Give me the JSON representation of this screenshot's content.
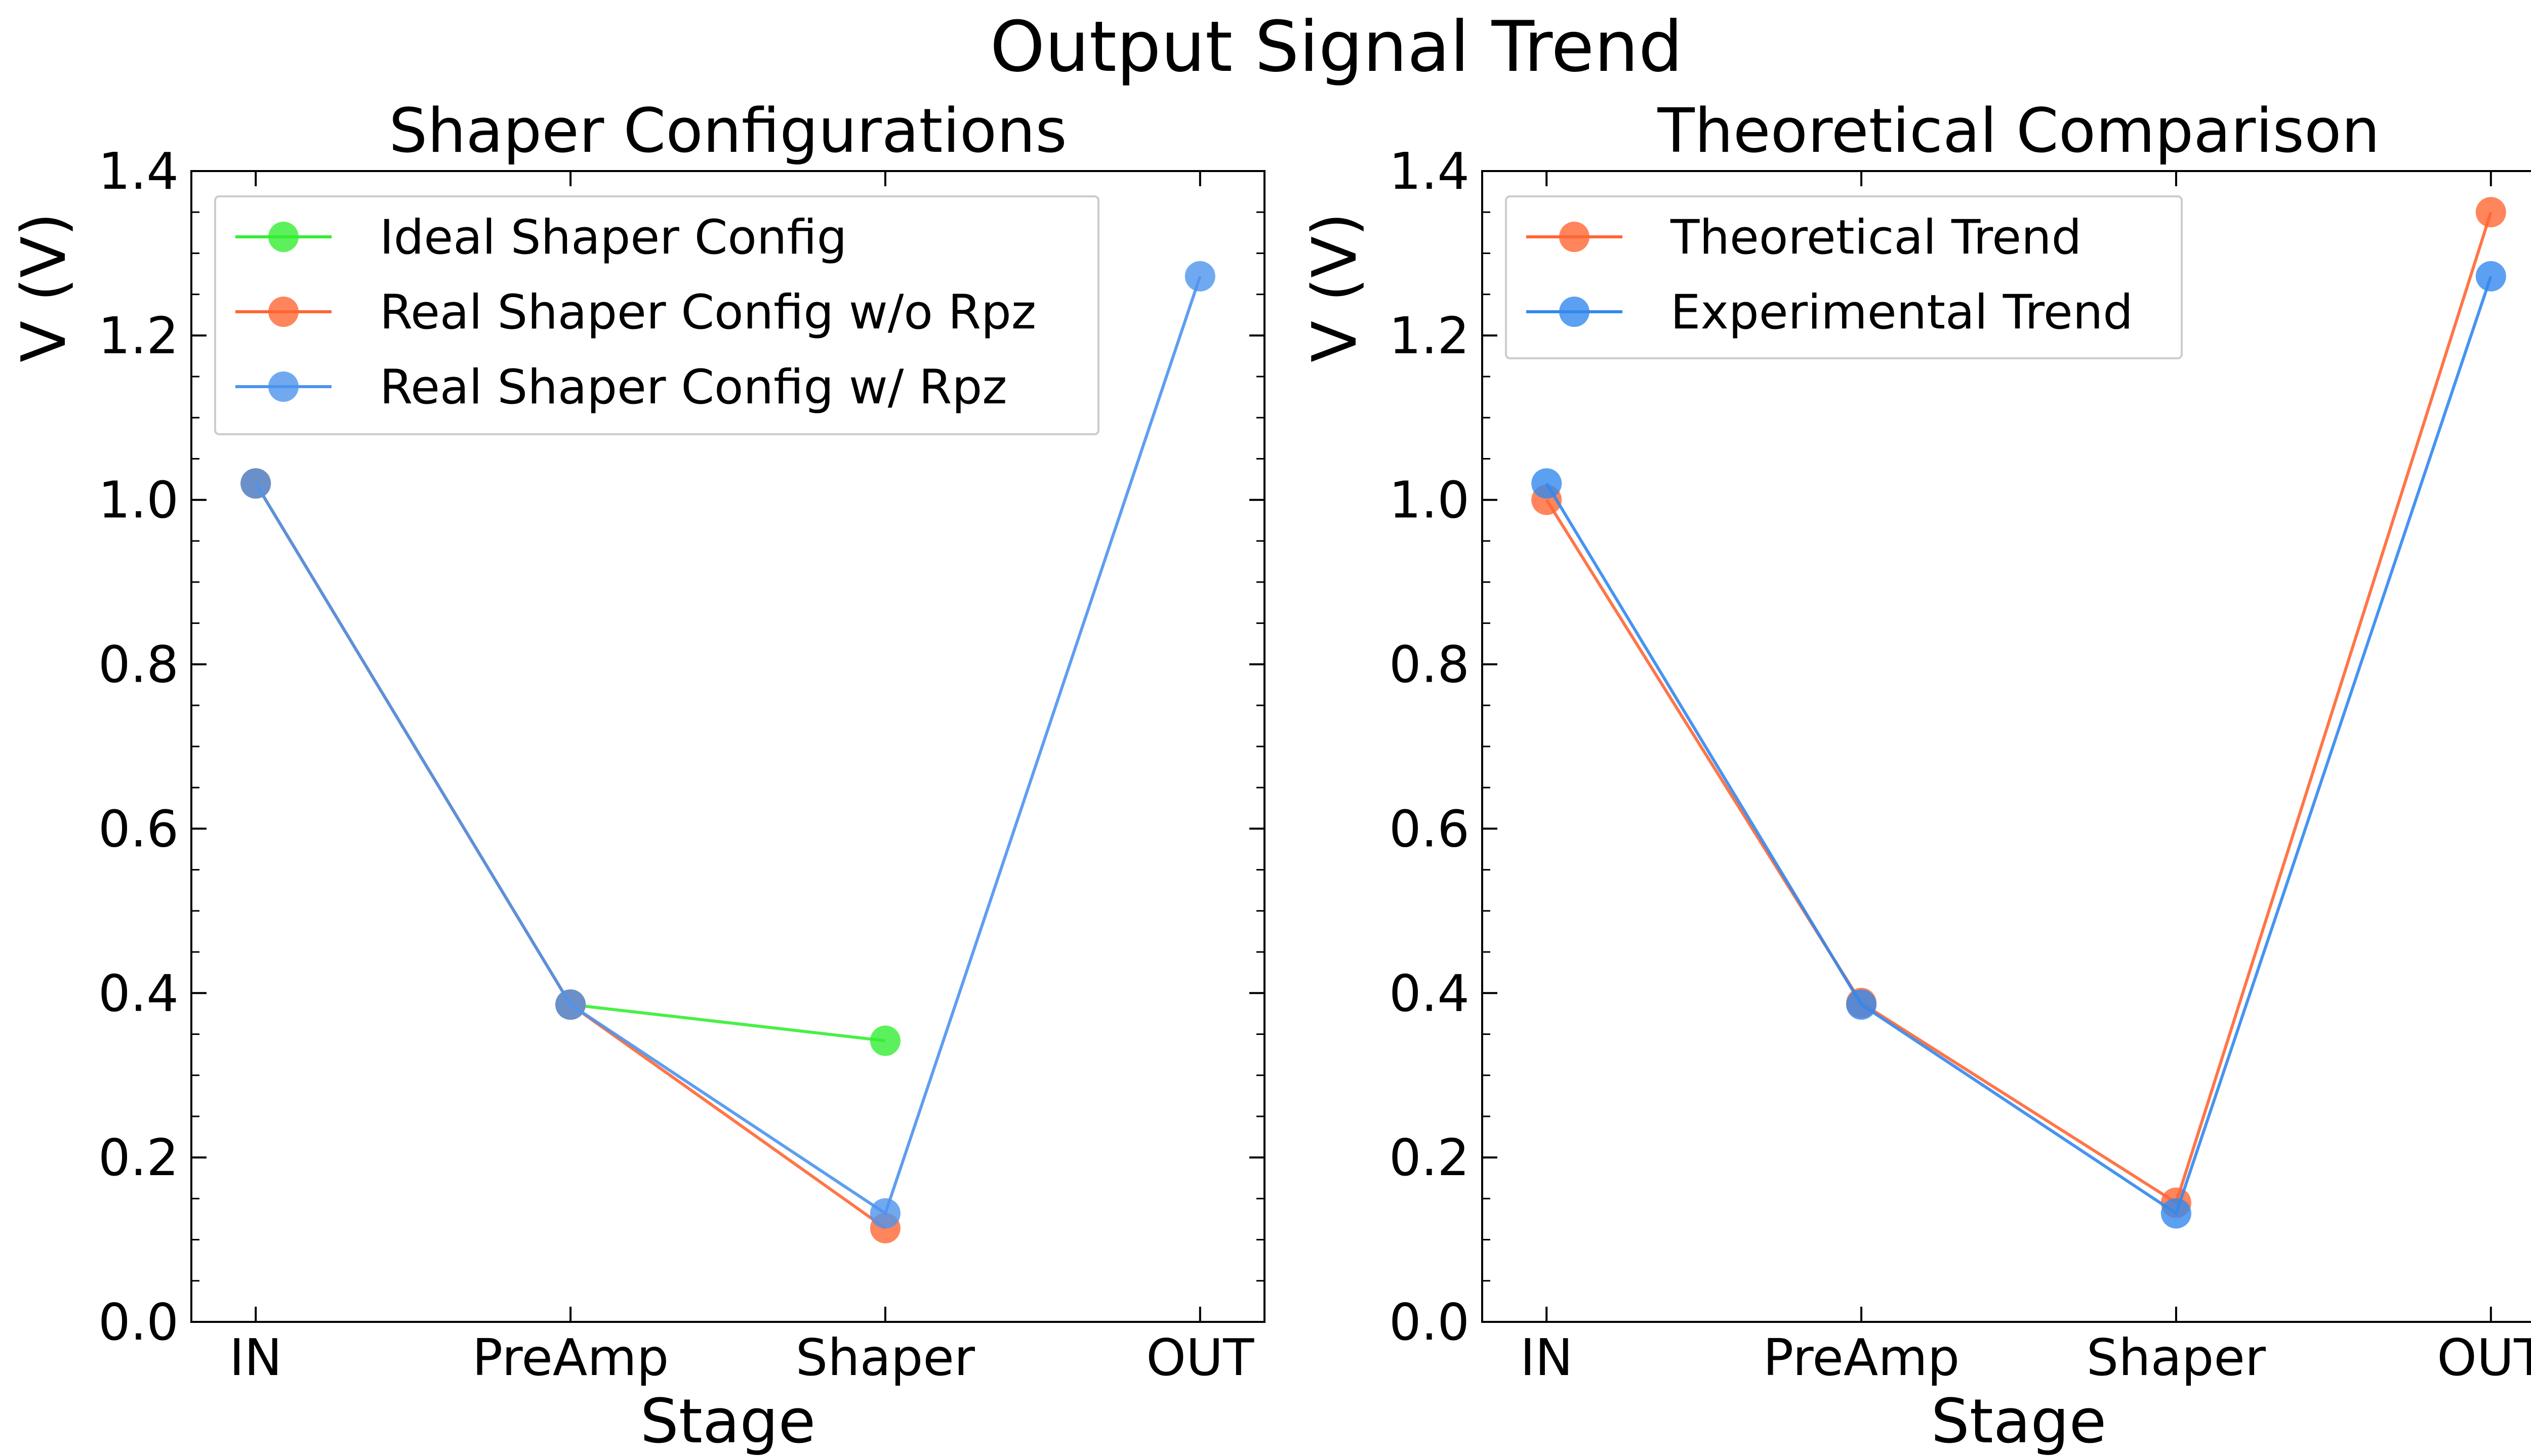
{
  "figure": {
    "title": "Output Signal Trend"
  },
  "chart_data": [
    {
      "type": "line",
      "title": "Shaper Configurations",
      "xlabel": "Stage",
      "ylabel": "V (V)",
      "categories": [
        "IN",
        "PreAmp",
        "Shaper",
        "OUT"
      ],
      "ylim": [
        0,
        1.4
      ],
      "yticks": [
        "0.0",
        "0.2",
        "0.4",
        "0.6",
        "0.8",
        "1.0",
        "1.2",
        "1.4"
      ],
      "legend_position": "top-left",
      "grid": false,
      "series": [
        {
          "name": "Ideal Shaper Config",
          "color": "#33ee33",
          "values": [
            1.02,
            0.386,
            0.342,
            null
          ]
        },
        {
          "name": "Real Shaper Config w/o Rpz",
          "color": "#ff6633",
          "values": [
            1.02,
            0.386,
            0.114,
            null
          ]
        },
        {
          "name": "Real Shaper Config w/ Rpz",
          "color": "#4d94ee",
          "values": [
            1.02,
            0.386,
            0.132,
            1.272
          ]
        }
      ]
    },
    {
      "type": "line",
      "title": "Theoretical Comparison",
      "xlabel": "Stage",
      "ylabel": "V (V)",
      "categories": [
        "IN",
        "PreAmp",
        "Shaper",
        "OUT"
      ],
      "ylim": [
        0,
        1.4
      ],
      "yticks": [
        "0.0",
        "0.2",
        "0.4",
        "0.6",
        "0.8",
        "1.0",
        "1.2",
        "1.4"
      ],
      "legend_position": "top-left",
      "grid": false,
      "series": [
        {
          "name": "Theoretical Trend",
          "color": "#ff6633",
          "values": [
            1.0,
            0.388,
            0.145,
            1.35
          ]
        },
        {
          "name": "Experimental Trend",
          "color": "#3388ee",
          "values": [
            1.02,
            0.386,
            0.132,
            1.272
          ]
        }
      ]
    }
  ]
}
